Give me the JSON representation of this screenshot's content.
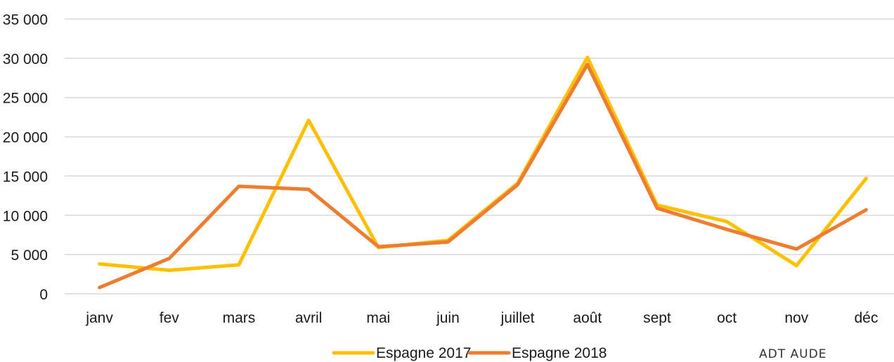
{
  "source_label": "ADT AUDE",
  "chart_data": {
    "type": "line",
    "categories": [
      "janv",
      "fev",
      "mars",
      "avril",
      "mai",
      "juin",
      "juillet",
      "août",
      "sept",
      "oct",
      "nov",
      "déc"
    ],
    "series": [
      {
        "name": "Espagne 2017",
        "color": "#FFC000",
        "values": [
          3800,
          3000,
          3700,
          22100,
          5900,
          6800,
          14100,
          30100,
          11300,
          9200,
          3600,
          14700
        ]
      },
      {
        "name": "Espagne 2018",
        "color": "#ED7D31",
        "values": [
          800,
          4500,
          13700,
          13300,
          6000,
          6600,
          13900,
          29200,
          10900,
          8200,
          5700,
          10700
        ]
      }
    ],
    "ylim": [
      0,
      35000
    ],
    "yticks": [
      "0",
      "5 000",
      "10 000",
      "15 000",
      "20 000",
      "25 000",
      "30 000",
      "35 000"
    ],
    "ytick_values": [
      0,
      5000,
      10000,
      15000,
      20000,
      25000,
      30000,
      35000
    ],
    "grid": true,
    "legend_position": "bottom"
  }
}
